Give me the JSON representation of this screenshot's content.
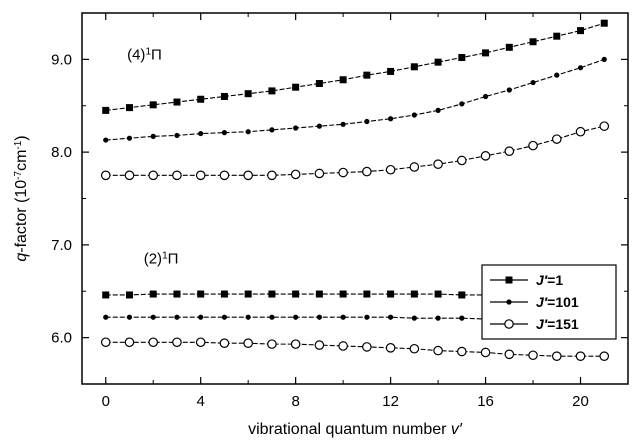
{
  "chart_data": {
    "type": "line",
    "x_label": "vibrational quantum number v′",
    "y_label": "q-factor (10⁻⁷cm⁻¹)",
    "xlim": [
      -1,
      22
    ],
    "ylim": [
      5.5,
      9.5
    ],
    "x_ticks": [
      0,
      4,
      8,
      12,
      16,
      20
    ],
    "y_ticks": [
      6.0,
      7.0,
      8.0,
      9.0
    ],
    "y_tick_labels": [
      "6.0",
      "7.0",
      "8.0",
      "9.0"
    ],
    "grid": false,
    "legend_position": "right",
    "annotations": [
      {
        "text": "(4)¹Π",
        "x": 0.9,
        "y": 9.0
      },
      {
        "text": "(2)¹Π",
        "x": 1.6,
        "y": 6.8
      }
    ],
    "x": [
      0,
      1,
      2,
      3,
      4,
      5,
      6,
      7,
      8,
      9,
      10,
      11,
      12,
      13,
      14,
      15,
      16,
      17,
      18,
      19,
      20,
      21
    ],
    "series": [
      {
        "name": "J′=1",
        "marker": "square",
        "group": "(4)¹Π",
        "values": [
          8.45,
          8.48,
          8.51,
          8.54,
          8.57,
          8.6,
          8.63,
          8.66,
          8.7,
          8.74,
          8.78,
          8.83,
          8.87,
          8.92,
          8.97,
          9.02,
          9.07,
          9.13,
          9.19,
          9.25,
          9.31,
          9.39
        ]
      },
      {
        "name": "J′=101",
        "marker": "dot",
        "group": "(4)¹Π",
        "values": [
          8.13,
          8.15,
          8.17,
          8.18,
          8.2,
          8.21,
          8.22,
          8.24,
          8.26,
          8.28,
          8.3,
          8.33,
          8.36,
          8.4,
          8.45,
          8.52,
          8.6,
          8.67,
          8.75,
          8.83,
          8.91,
          9.0
        ]
      },
      {
        "name": "J′=151",
        "marker": "open-circle",
        "group": "(4)¹Π",
        "values": [
          7.75,
          7.75,
          7.75,
          7.75,
          7.75,
          7.75,
          7.75,
          7.75,
          7.76,
          7.77,
          7.78,
          7.79,
          7.81,
          7.84,
          7.87,
          7.91,
          7.96,
          8.01,
          8.07,
          8.14,
          8.22,
          8.28
        ]
      },
      {
        "name": "J′=1",
        "marker": "square",
        "group": "(2)¹Π",
        "values": [
          6.46,
          6.46,
          6.47,
          6.47,
          6.47,
          6.47,
          6.47,
          6.47,
          6.47,
          6.47,
          6.47,
          6.47,
          6.47,
          6.47,
          6.47,
          6.46,
          6.46,
          6.46,
          6.45,
          6.45,
          6.45,
          6.46
        ]
      },
      {
        "name": "J′=101",
        "marker": "dot",
        "group": "(2)¹Π",
        "values": [
          6.22,
          6.22,
          6.22,
          6.22,
          6.22,
          6.22,
          6.22,
          6.22,
          6.22,
          6.22,
          6.22,
          6.22,
          6.22,
          6.21,
          6.21,
          6.21,
          6.2,
          6.2,
          6.2,
          6.2,
          6.2,
          6.2
        ]
      },
      {
        "name": "J′=151",
        "marker": "open-circle",
        "group": "(2)¹Π",
        "values": [
          5.95,
          5.95,
          5.95,
          5.95,
          5.95,
          5.94,
          5.94,
          5.93,
          5.93,
          5.92,
          5.91,
          5.9,
          5.89,
          5.88,
          5.86,
          5.85,
          5.84,
          5.82,
          5.81,
          5.8,
          5.8,
          5.8
        ]
      }
    ],
    "legend": [
      {
        "label": "J′=1",
        "marker": "square"
      },
      {
        "label": "J′=101",
        "marker": "dot"
      },
      {
        "label": "J′=151",
        "marker": "open-circle"
      }
    ]
  }
}
